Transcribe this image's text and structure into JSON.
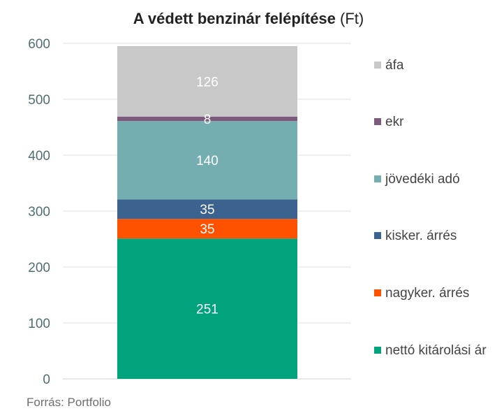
{
  "chart_data": {
    "type": "bar",
    "title": "A védett benzinár felépítése",
    "title_unit": "(Ft)",
    "categories": [
      ""
    ],
    "stacked": true,
    "ylim": [
      0,
      600
    ],
    "yticks": [
      0,
      100,
      200,
      300,
      400,
      500,
      600
    ],
    "grid": true,
    "legend_position": "right",
    "series": [
      {
        "name": "nettó kitárolási ár",
        "values": [
          251
        ],
        "color": "#00A37C"
      },
      {
        "name": "nagyker. árrés",
        "values": [
          35
        ],
        "color": "#FF5200"
      },
      {
        "name": "kisker. árrés",
        "values": [
          35
        ],
        "color": "#3C628F"
      },
      {
        "name": "jövedéki adó",
        "values": [
          140
        ],
        "color": "#74AEB1"
      },
      {
        "name": "ekr",
        "values": [
          8
        ],
        "color": "#7E5A7E"
      },
      {
        "name": "áfa",
        "values": [
          126
        ],
        "color": "#C8C8C8"
      }
    ],
    "source": "Forrás: Portfolio"
  }
}
